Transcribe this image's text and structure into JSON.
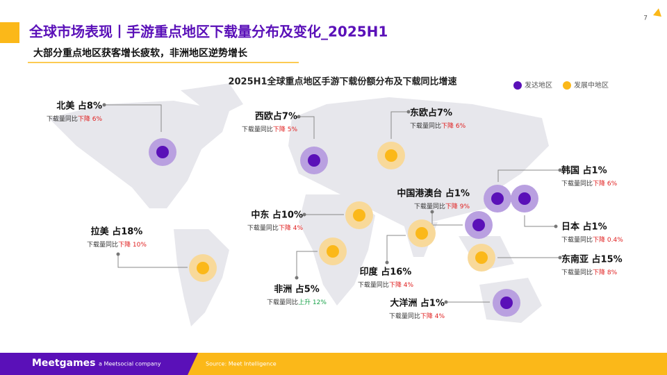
{
  "header": {
    "title": "全球市场表现丨手游重点地区下载量分布及变化_2025H1",
    "subtitle": "大部分重点地区获客增长疲软，非洲地区逆势增长",
    "page": "7"
  },
  "map": {
    "title": "2025H1全球重点地区手游下载份额分布及下载同比增速",
    "legend": [
      {
        "label": "发达地区",
        "color": "#5a10b8",
        "halo": "#b9a0e0"
      },
      {
        "label": "发展中地区",
        "color": "#fbb819",
        "halo": "#f8d99a"
      }
    ],
    "change_prefix": "下载量同比",
    "regions": [
      {
        "label": "北美 占8%",
        "change": "下降 6%",
        "change_color": "#e02020",
        "group": 0
      },
      {
        "label": "西欧占7%",
        "change": "下降 5%",
        "change_color": "#e02020",
        "group": 0
      },
      {
        "label": "东欧占7%",
        "change": "下降 6%",
        "change_color": "#e02020",
        "group": 1
      },
      {
        "label": "韩国 占1%",
        "change": "下降 6%",
        "change_color": "#e02020",
        "group": 0
      },
      {
        "label": "中国港澳台 占1%",
        "change": "下降 9%",
        "change_color": "#e02020",
        "group": 0
      },
      {
        "label": "日本 占1%",
        "change": "下降 0.4%",
        "change_color": "#e02020",
        "group": 0
      },
      {
        "label": "东南亚 占15%",
        "change": "下降 8%",
        "change_color": "#e02020",
        "group": 1
      },
      {
        "label": "中东 占10%",
        "change": "下降 4%",
        "change_color": "#e02020",
        "group": 1
      },
      {
        "label": "印度 占16%",
        "change": "下降 4%",
        "change_color": "#e02020",
        "group": 1
      },
      {
        "label": "拉美 占18%",
        "change": "下降 10%",
        "change_color": "#e02020",
        "group": 1
      },
      {
        "label": "非洲 占5%",
        "change": "上升 12%",
        "change_color": "#1aa34a",
        "group": 1
      },
      {
        "label": "大洋洲 占1%",
        "change": "下降 4%",
        "change_color": "#e02020",
        "group": 0
      }
    ]
  },
  "footer": {
    "logo": "Meetgames",
    "company": "a Meetsocial company",
    "source": "Source: Meet Intelligence"
  }
}
